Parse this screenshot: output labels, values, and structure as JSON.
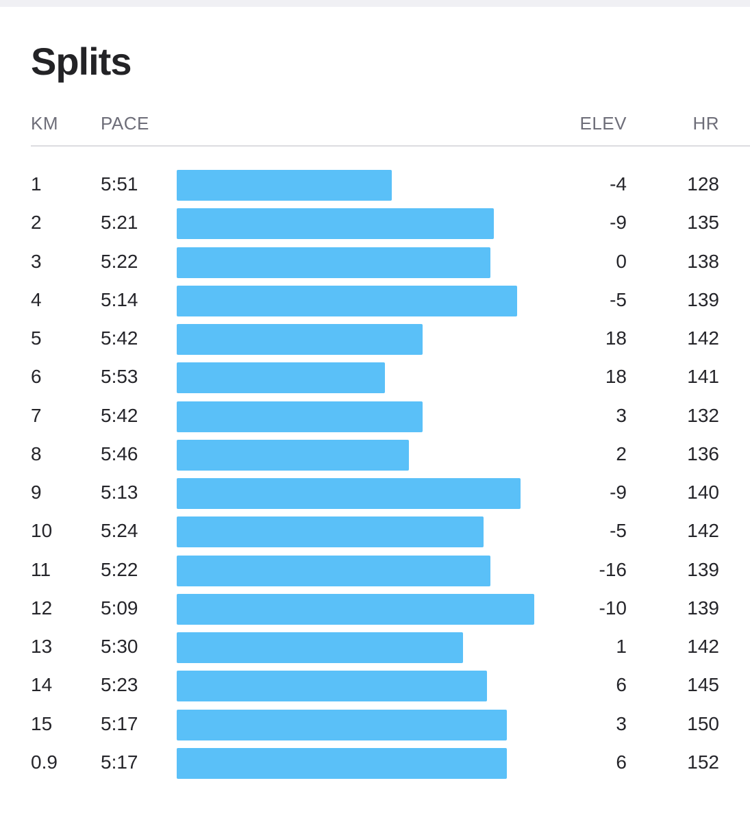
{
  "title": "Splits",
  "columns": {
    "km": "KM",
    "pace": "PACE",
    "elev": "ELEV",
    "hr": "HR"
  },
  "colors": {
    "bar": "#5ac0f8",
    "header_text": "#6d6d78",
    "divider": "#dcdce0"
  },
  "splits": [
    {
      "km": "1",
      "pace": "5:51",
      "elev": "-4",
      "hr": "128"
    },
    {
      "km": "2",
      "pace": "5:21",
      "elev": "-9",
      "hr": "135"
    },
    {
      "km": "3",
      "pace": "5:22",
      "elev": "0",
      "hr": "138"
    },
    {
      "km": "4",
      "pace": "5:14",
      "elev": "-5",
      "hr": "139"
    },
    {
      "km": "5",
      "pace": "5:42",
      "elev": "18",
      "hr": "142"
    },
    {
      "km": "6",
      "pace": "5:53",
      "elev": "18",
      "hr": "141"
    },
    {
      "km": "7",
      "pace": "5:42",
      "elev": "3",
      "hr": "132"
    },
    {
      "km": "8",
      "pace": "5:46",
      "elev": "2",
      "hr": "136"
    },
    {
      "km": "9",
      "pace": "5:13",
      "elev": "-9",
      "hr": "140"
    },
    {
      "km": "10",
      "pace": "5:24",
      "elev": "-5",
      "hr": "142"
    },
    {
      "km": "11",
      "pace": "5:22",
      "elev": "-16",
      "hr": "139"
    },
    {
      "km": "12",
      "pace": "5:09",
      "elev": "-10",
      "hr": "139"
    },
    {
      "km": "13",
      "pace": "5:30",
      "elev": "1",
      "hr": "142"
    },
    {
      "km": "14",
      "pace": "5:23",
      "elev": "6",
      "hr": "145"
    },
    {
      "km": "15",
      "pace": "5:17",
      "elev": "3",
      "hr": "150"
    },
    {
      "km": "0.9",
      "pace": "5:17",
      "elev": "6",
      "hr": "152"
    }
  ]
}
